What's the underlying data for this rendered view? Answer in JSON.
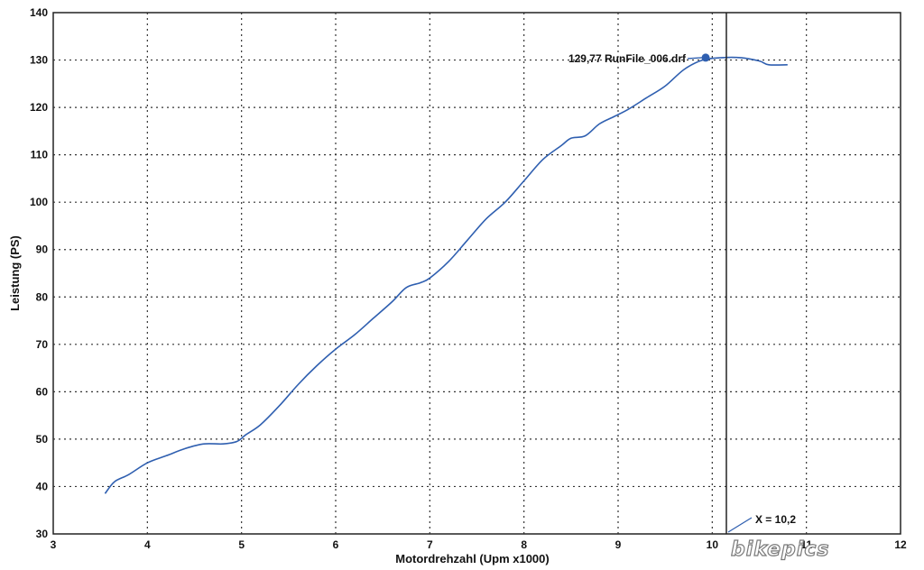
{
  "chart_data": {
    "type": "line",
    "title": "",
    "xlabel": "Motordrehzahl (Upm x1000)",
    "ylabel": "Leistung (PS)",
    "xlim": [
      3,
      12
    ],
    "ylim": [
      30,
      140
    ],
    "x_ticks": [
      "3",
      "4",
      "5",
      "6",
      "7",
      "8",
      "9",
      "10",
      "11",
      "12"
    ],
    "y_ticks": [
      "30",
      "40",
      "50",
      "60",
      "70",
      "80",
      "90",
      "100",
      "110",
      "120",
      "130",
      "140"
    ],
    "grid": true,
    "series": [
      {
        "color": "#2f5fb0",
        "x": [
          3.55,
          3.65,
          3.8,
          4.0,
          4.2,
          4.4,
          4.6,
          4.8,
          4.95,
          5.05,
          5.2,
          5.4,
          5.6,
          5.8,
          6.0,
          6.2,
          6.4,
          6.6,
          6.75,
          6.9,
          7.0,
          7.2,
          7.4,
          7.6,
          7.8,
          8.0,
          8.2,
          8.4,
          8.5,
          8.65,
          8.8,
          8.95,
          9.1,
          9.3,
          9.5,
          9.7,
          9.9,
          10.1,
          10.3,
          10.5,
          10.6,
          10.8
        ],
        "y": [
          38.5,
          41,
          42.5,
          45,
          46.5,
          48,
          49,
          49,
          49.5,
          51,
          53,
          57,
          61.5,
          65.5,
          69,
          72,
          75.5,
          79,
          82,
          83,
          84,
          87.5,
          92,
          96.5,
          100,
          104.5,
          109,
          112,
          113.5,
          114,
          116.5,
          118,
          119.5,
          122,
          124.5,
          128,
          130,
          130.5,
          130.5,
          129.8,
          129,
          129
        ]
      }
    ],
    "annotations": {
      "marker_label": "129,77 RunFile_006.drf",
      "marker_x": 9.93,
      "marker_y": 130.5,
      "cursor_label": "X = 10,2",
      "cursor_x": 10.15
    }
  },
  "watermark": "bikepics",
  "colors": {
    "line": "#2f5fb0",
    "grid": "#333333",
    "frame": "#222222"
  }
}
